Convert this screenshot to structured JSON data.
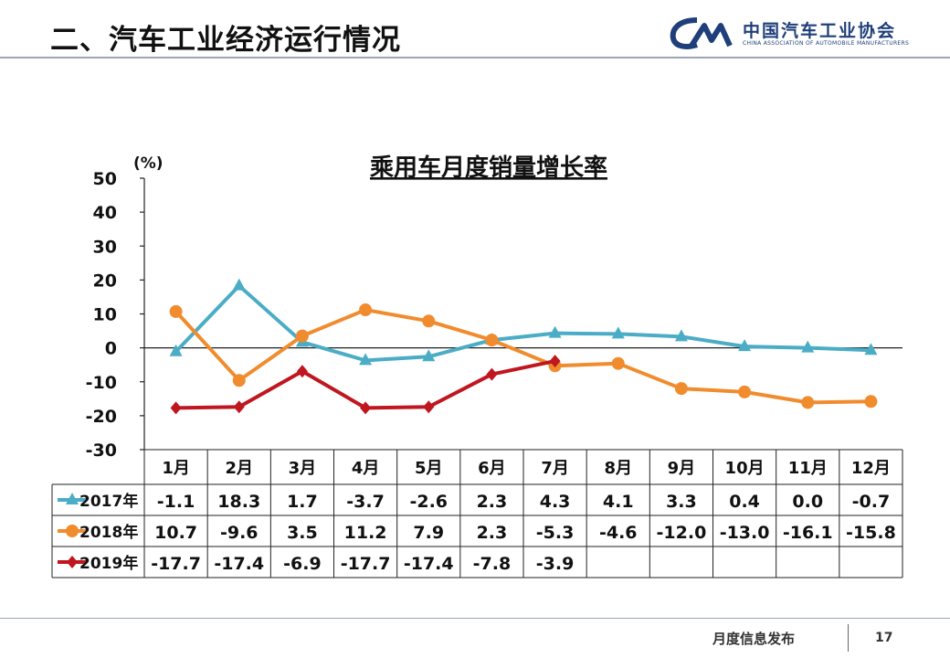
{
  "header": {
    "title": "二、汽车工业经济运行情况",
    "logo_cn": "中国汽车工业协会",
    "logo_en": "CHINA ASSOCIATION OF AUTOMOBILE MANUFACTURERS"
  },
  "footer": {
    "label": "月度信息发布",
    "page_number": "17"
  },
  "chart_data": {
    "type": "line",
    "title": "乘用车月度销量增长率",
    "ylabel": "(%)",
    "ylim": [
      -30,
      50
    ],
    "yticks": [
      50,
      40,
      30,
      20,
      10,
      0,
      -10,
      -20,
      -30
    ],
    "categories": [
      "1月",
      "2月",
      "3月",
      "4月",
      "5月",
      "6月",
      "7月",
      "8月",
      "9月",
      "10月",
      "11月",
      "12月"
    ],
    "grid": false,
    "legend": "table-left",
    "series": [
      {
        "name": "2017年",
        "color": "#4bacc6",
        "marker": "triangle",
        "values": [
          -1.1,
          18.3,
          1.7,
          -3.7,
          -2.6,
          2.3,
          4.3,
          4.1,
          3.3,
          0.4,
          0.0,
          -0.7
        ],
        "labels": [
          "-1.1",
          "18.3",
          "1.7",
          "-3.7",
          "-2.6",
          "2.3",
          "4.3",
          "4.1",
          "3.3",
          "0.4",
          "0.0",
          "-0.7"
        ]
      },
      {
        "name": "2018年",
        "color": "#f08c2e",
        "marker": "circle",
        "values": [
          10.7,
          -9.6,
          3.5,
          11.2,
          7.9,
          2.3,
          -5.3,
          -4.6,
          -12.0,
          -13.0,
          -16.1,
          -15.8
        ],
        "labels": [
          "10.7",
          "-9.6",
          "3.5",
          "11.2",
          "7.9",
          "2.3",
          "-5.3",
          "-4.6",
          "-12.0",
          "-13.0",
          "-16.1",
          "-15.8"
        ]
      },
      {
        "name": "2019年",
        "color": "#c0161f",
        "marker": "diamond",
        "values": [
          -17.7,
          -17.4,
          -6.9,
          -17.7,
          -17.4,
          -7.8,
          -3.9,
          null,
          null,
          null,
          null,
          null
        ],
        "labels": [
          "-17.7",
          "-17.4",
          "-6.9",
          "-17.7",
          "-17.4",
          "-7.8",
          "-3.9",
          "",
          "",
          "",
          "",
          ""
        ]
      }
    ]
  }
}
